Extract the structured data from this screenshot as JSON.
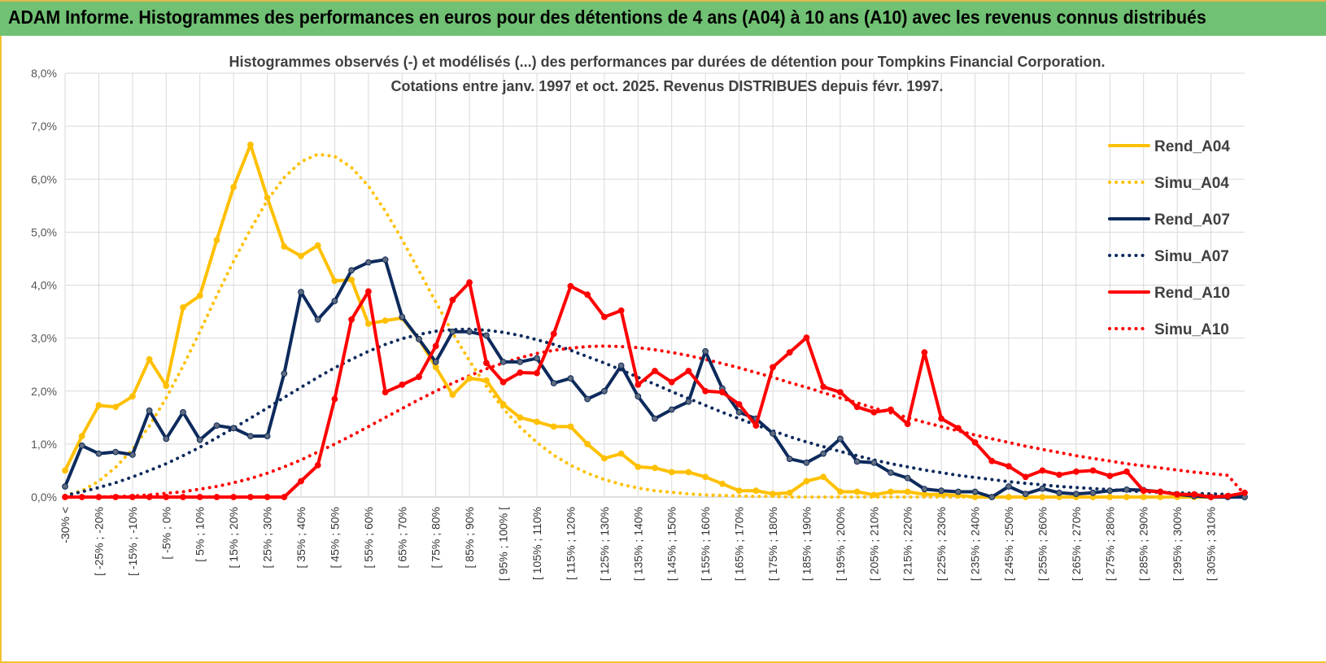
{
  "banner": {
    "title": "ADAM Informe. Histogrammes des performances en euros pour des détentions de 4 ans (A04) à 10 ans (A10) avec les revenus connus distribués"
  },
  "chart_data": {
    "type": "line",
    "subtitle_lines": [
      "Histogrammes observés (-) et modélisés (...) des performances par durées de détention pour Tompkins Financial Corporation.",
      "Cotations entre janv. 1997 et oct. 2025. Revenus DISTRIBUES depuis févr. 1997."
    ],
    "y_ticks": [
      "0,0%",
      "1,0%",
      "2,0%",
      "3,0%",
      "4,0%",
      "5,0%",
      "6,0%",
      "7,0%",
      "8,0%"
    ],
    "ylim": [
      0,
      8
    ],
    "grid": true,
    "legend_position": "right",
    "x_labels_shown": [
      "-30% <",
      "[ -25% ; -20%",
      "[ -15% ; -10%",
      "[ -5% ; 0%",
      "[ 5% ; 10%",
      "[ 15% ; 20%",
      "[ 25% ; 30%",
      "[ 35% ; 40%",
      "[ 45% ; 50%",
      "[ 55% ; 60%",
      "[ 65% ; 70%",
      "[ 75% ; 80%",
      "[ 85% ; 90%",
      "[ 95% ; 100% [",
      "[ 105% ; 110%",
      "[ 115% ; 120%",
      "[ 125% ; 130%",
      "[ 135% ; 140%",
      "[ 145% ; 150%",
      "[ 155% ; 160%",
      "[ 165% ; 170%",
      "[ 175% ; 180%",
      "[ 185% ; 190%",
      "[ 195% ; 200%",
      "[ 205% ; 210%",
      "[ 215% ; 220%",
      "[ 225% ; 230%",
      "[ 235% ; 240%",
      "[ 245% ; 250%",
      "[ 255% ; 260%",
      "[ 265% ; 270%",
      "[ 275% ; 280%",
      "[ 285% ; 290%",
      "[ 295% ; 300%",
      "[ 305% ; 310%"
    ],
    "series": [
      {
        "name": "Rend_A04",
        "color": "#ffc000",
        "style": "solid",
        "markers": true,
        "values": [
          0.5,
          1.15,
          1.73,
          1.7,
          1.9,
          2.6,
          2.1,
          3.58,
          3.8,
          4.85,
          5.85,
          6.65,
          5.65,
          4.73,
          4.55,
          4.75,
          4.08,
          4.1,
          3.27,
          3.33,
          3.38,
          2.98,
          2.45,
          1.93,
          2.24,
          2.2,
          1.75,
          1.5,
          1.42,
          1.33,
          1.33,
          1.0,
          0.73,
          0.82,
          0.57,
          0.55,
          0.47,
          0.47,
          0.38,
          0.25,
          0.12,
          0.12,
          0.06,
          0.08,
          0.3,
          0.38,
          0.1,
          0.1,
          0.04,
          0.1,
          0.1,
          0.05,
          0.05,
          0.03,
          0.0,
          0.0,
          0.0,
          0.0,
          0.0,
          0.0,
          0.0,
          0.0,
          0.0,
          0.0,
          0.0,
          0.0,
          0.0,
          0.0,
          0.0,
          0.0,
          0.0
        ]
      },
      {
        "name": "Simu_A04",
        "color": "#ffc000",
        "style": "dotted",
        "markers": false,
        "values": [
          0.03,
          0.12,
          0.3,
          0.56,
          0.9,
          1.34,
          1.87,
          2.47,
          3.12,
          3.8,
          4.45,
          5.05,
          5.6,
          6.03,
          6.33,
          6.47,
          6.43,
          6.22,
          5.87,
          5.4,
          4.86,
          4.27,
          3.68,
          3.1,
          2.57,
          2.09,
          1.67,
          1.32,
          1.03,
          0.79,
          0.6,
          0.45,
          0.33,
          0.24,
          0.17,
          0.12,
          0.09,
          0.06,
          0.04,
          0.03,
          0.02,
          0.01,
          0.01,
          0.0,
          0.0,
          0.0,
          0.0,
          0.0,
          0.0,
          0.0,
          0.0,
          0.0,
          0.0,
          0.0,
          0.0,
          0.0,
          0.0,
          0.0,
          0.0,
          0.0,
          0.0,
          0.0,
          0.0,
          0.0,
          0.0,
          0.0,
          0.0,
          0.0,
          0.0,
          0.0,
          0.0
        ]
      },
      {
        "name": "Rend_A07",
        "color": "#0d2a5c",
        "style": "solid",
        "markers": true,
        "values": [
          0.2,
          0.97,
          0.82,
          0.85,
          0.8,
          1.63,
          1.1,
          1.6,
          1.08,
          1.35,
          1.3,
          1.15,
          1.15,
          2.33,
          3.87,
          3.35,
          3.7,
          4.28,
          4.43,
          4.48,
          3.4,
          2.98,
          2.55,
          3.12,
          3.12,
          3.05,
          2.55,
          2.55,
          2.62,
          2.15,
          2.24,
          1.85,
          2.0,
          2.48,
          1.9,
          1.48,
          1.65,
          1.8,
          2.75,
          2.05,
          1.6,
          1.48,
          1.2,
          0.72,
          0.65,
          0.82,
          1.1,
          0.67,
          0.65,
          0.46,
          0.36,
          0.15,
          0.12,
          0.1,
          0.1,
          0.0,
          0.2,
          0.06,
          0.16,
          0.08,
          0.06,
          0.08,
          0.12,
          0.14,
          0.13,
          0.1,
          0.05,
          0.02,
          0.0,
          0.0,
          0.0
        ]
      },
      {
        "name": "Simu_A07",
        "color": "#0d2a5c",
        "style": "dotted",
        "markers": false,
        "values": [
          0.03,
          0.1,
          0.18,
          0.27,
          0.38,
          0.5,
          0.63,
          0.78,
          0.94,
          1.12,
          1.3,
          1.49,
          1.68,
          1.88,
          2.07,
          2.26,
          2.44,
          2.6,
          2.75,
          2.88,
          2.99,
          3.07,
          3.13,
          3.16,
          3.17,
          3.15,
          3.11,
          3.05,
          2.97,
          2.88,
          2.77,
          2.65,
          2.53,
          2.4,
          2.26,
          2.13,
          1.99,
          1.86,
          1.73,
          1.6,
          1.48,
          1.36,
          1.25,
          1.14,
          1.04,
          0.95,
          0.86,
          0.78,
          0.7,
          0.63,
          0.57,
          0.51,
          0.46,
          0.41,
          0.37,
          0.33,
          0.29,
          0.26,
          0.23,
          0.2,
          0.18,
          0.16,
          0.14,
          0.12,
          0.1,
          0.09,
          0.08,
          0.07,
          0.06,
          0.05,
          0.04
        ]
      },
      {
        "name": "Rend_A10",
        "color": "#ff0000",
        "style": "solid",
        "markers": true,
        "values": [
          0.0,
          0.0,
          0.0,
          0.0,
          0.0,
          0.0,
          0.0,
          0.0,
          0.0,
          0.0,
          0.0,
          0.0,
          0.0,
          0.0,
          0.3,
          0.6,
          1.85,
          3.35,
          3.88,
          1.98,
          2.12,
          2.27,
          2.85,
          3.72,
          4.05,
          2.53,
          2.17,
          2.35,
          2.34,
          3.08,
          3.98,
          3.82,
          3.4,
          3.52,
          2.12,
          2.38,
          2.17,
          2.38,
          2.0,
          1.98,
          1.75,
          1.35,
          2.45,
          2.73,
          3.01,
          2.08,
          1.98,
          1.7,
          1.6,
          1.65,
          1.38,
          2.73,
          1.48,
          1.3,
          1.03,
          0.68,
          0.58,
          0.38,
          0.5,
          0.42,
          0.48,
          0.5,
          0.4,
          0.48,
          0.12,
          0.1,
          0.05,
          0.05,
          0.0,
          0.02,
          0.08
        ]
      },
      {
        "name": "Simu_A10",
        "color": "#ff0000",
        "style": "dotted",
        "markers": false,
        "values": [
          0.0,
          0.0,
          0.0,
          0.01,
          0.02,
          0.04,
          0.07,
          0.1,
          0.15,
          0.2,
          0.27,
          0.35,
          0.45,
          0.57,
          0.7,
          0.85,
          1.0,
          1.16,
          1.33,
          1.5,
          1.67,
          1.84,
          2.0,
          2.15,
          2.29,
          2.42,
          2.53,
          2.63,
          2.71,
          2.77,
          2.81,
          2.84,
          2.85,
          2.84,
          2.82,
          2.78,
          2.73,
          2.67,
          2.6,
          2.52,
          2.44,
          2.35,
          2.26,
          2.16,
          2.07,
          1.97,
          1.87,
          1.78,
          1.68,
          1.59,
          1.5,
          1.41,
          1.33,
          1.25,
          1.17,
          1.1,
          1.03,
          0.96,
          0.9,
          0.84,
          0.78,
          0.73,
          0.68,
          0.63,
          0.59,
          0.55,
          0.51,
          0.47,
          0.44,
          0.41,
          0.05
        ]
      }
    ]
  }
}
